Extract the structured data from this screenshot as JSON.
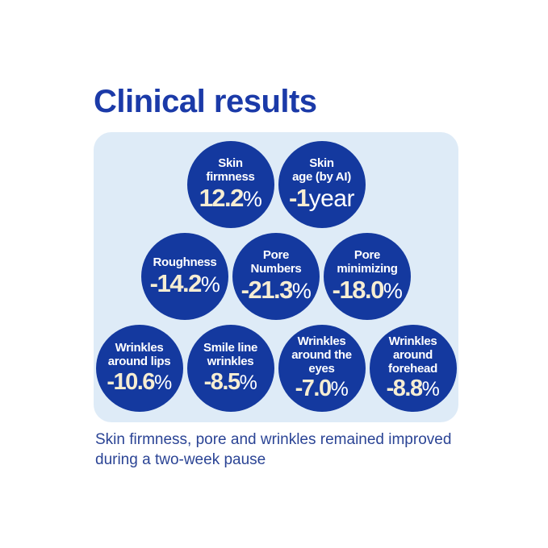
{
  "title": "Clinical results",
  "caption": {
    "line1": "Skin firmness, pore and wrinkles remained improved",
    "line2": "during a two-week pause"
  },
  "colors": {
    "circle_blue": "#14399F",
    "panel_light_blue": "#DEEBF7",
    "title_blue": "#1B3AA8",
    "caption_blue": "#2B4495",
    "number_cream": "#F6EDD2",
    "unit_white": "#FFFFFF"
  },
  "rows": [
    {
      "circles": [
        {
          "label": "Skin\nfirmness",
          "value": "12.2",
          "unit": "%"
        },
        {
          "label": "Skin\nage (by AI)",
          "value": "-1",
          "unit": "year"
        }
      ]
    },
    {
      "circles": [
        {
          "label": "Roughness",
          "value": "-14.2",
          "unit": "%"
        },
        {
          "label": "Pore\nNumbers",
          "value": "-21.3",
          "unit": "%"
        },
        {
          "label": "Pore\nminimizing",
          "value": "-18.0",
          "unit": "%"
        }
      ]
    },
    {
      "circles": [
        {
          "label": "Wrinkles\naround lips",
          "value": "-10.6",
          "unit": "%"
        },
        {
          "label": "Smile line\nwrinkles",
          "value": "-8.5",
          "unit": "%"
        },
        {
          "label": "Wrinkles\naround the\neyes",
          "value": "-7.0",
          "unit": "%"
        },
        {
          "label": "Wrinkles\naround\nforehead",
          "value": "-8.8",
          "unit": "%"
        }
      ]
    }
  ],
  "chart_data": {
    "type": "table",
    "title": "Clinical results",
    "categories": [
      "Skin firmness",
      "Skin age (by AI)",
      "Roughness",
      "Pore Numbers",
      "Pore minimizing",
      "Wrinkles around lips",
      "Smile line wrinkles",
      "Wrinkles around the eyes",
      "Wrinkles around forehead"
    ],
    "values": [
      12.2,
      -1,
      -14.2,
      -21.3,
      -18.0,
      -10.6,
      -8.5,
      -7.0,
      -8.8
    ],
    "units": [
      "%",
      "year",
      "%",
      "%",
      "%",
      "%",
      "%",
      "%",
      "%"
    ],
    "layout": "bubble badges in rows of 2 / 3 / 4 on light blue rounded panel",
    "note": "Skin firmness, pore and wrinkles remained improved during a two-week pause"
  }
}
